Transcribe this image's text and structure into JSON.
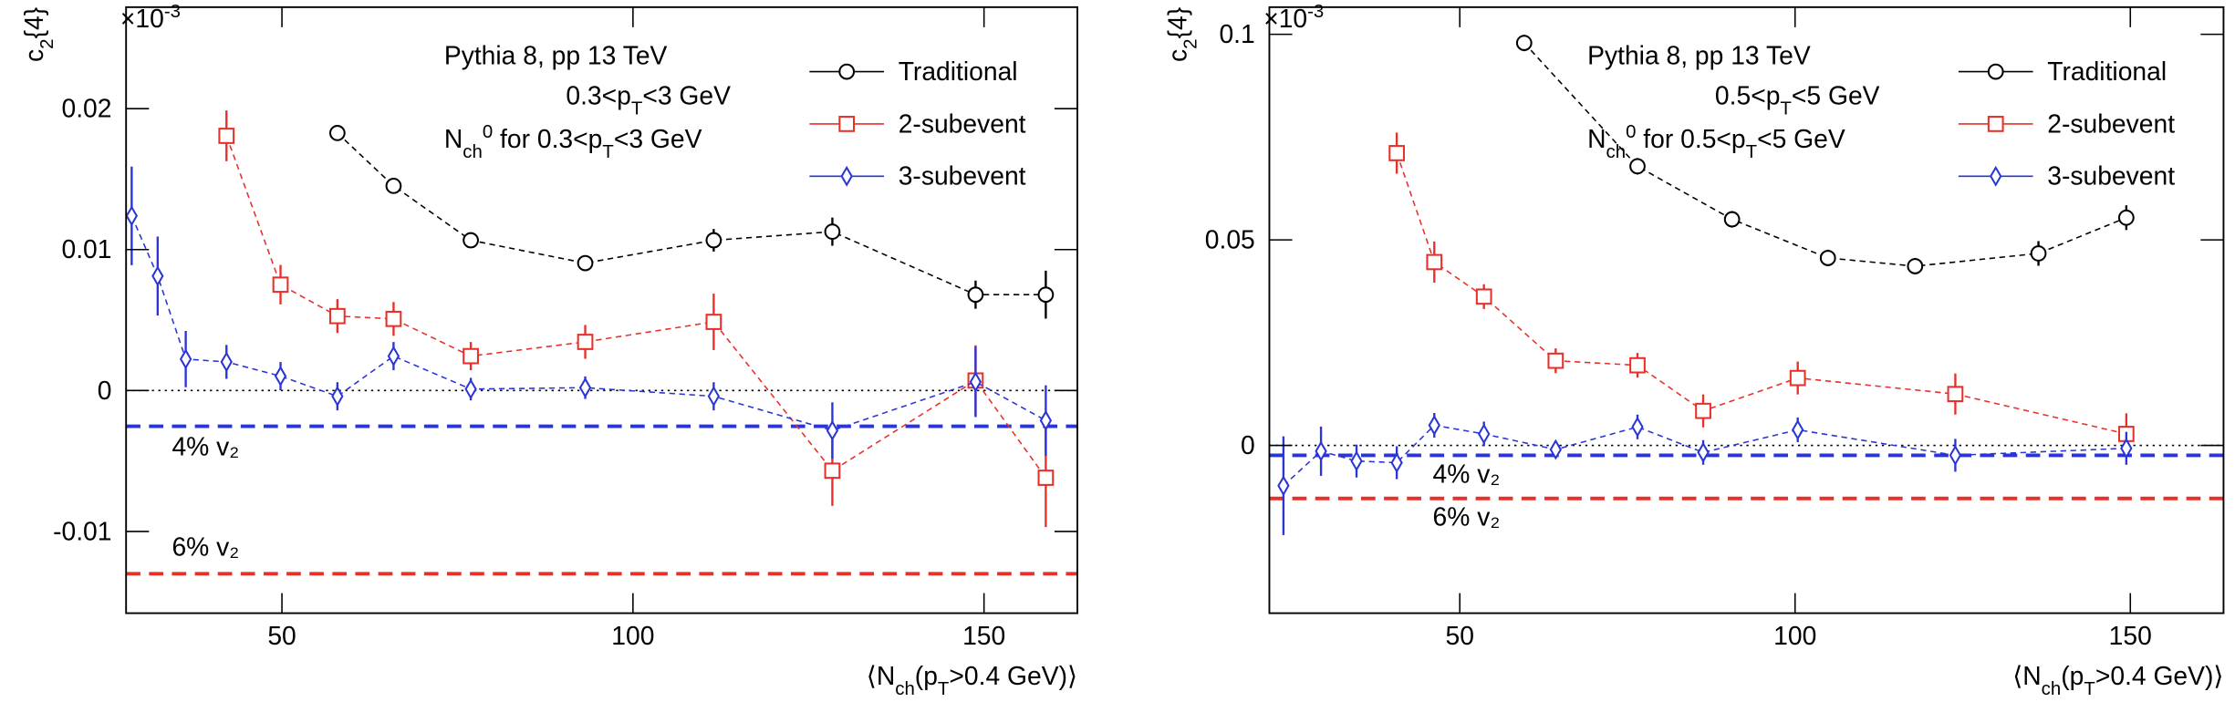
{
  "chart_data": [
    {
      "type": "line",
      "multiplier": [
        "×10",
        {
          "sup": "-3"
        }
      ],
      "ylabel": [
        "c",
        {
          "sub": "2"
        },
        "{4}"
      ],
      "xlabel": [
        "⟨N",
        {
          "sub": "ch"
        },
        "(p",
        {
          "sub": "T"
        },
        ">0.4 GeV)⟩"
      ],
      "annotations": [
        [
          "Pythia 8, pp 13 TeV"
        ],
        [
          "0.3<p",
          {
            "sub": "T"
          },
          "<3 GeV"
        ],
        [
          "N",
          {
            "sub": "ch"
          },
          {
            "sup": "0"
          },
          " for 0.3<p",
          {
            "sub": "T"
          },
          "<3 GeV"
        ]
      ],
      "xlim": [
        27.8,
        163.3
      ],
      "ylim": [
        -0.0158,
        0.0272
      ],
      "xticks": [
        50,
        100,
        150
      ],
      "yticks": [
        0.02,
        0.01,
        0,
        -0.01
      ],
      "series": [
        {
          "name": "Traditional",
          "color": "#000000",
          "marker": "circle",
          "x": [
            57.9,
            65.9,
            76.9,
            93.2,
            111.5,
            128.4,
            148.8,
            158.8
          ],
          "values": [
            0.01827,
            0.01452,
            0.01066,
            0.00904,
            0.01066,
            0.01127,
            0.0068,
            0.0068
          ],
          "errors": [
            0.0005,
            0.0005,
            0.0005,
            0.0005,
            0.0008,
            0.001,
            0.001,
            0.0017
          ]
        },
        {
          "name": "2-subevent",
          "color": "#e8302a",
          "marker": "square",
          "x": [
            42.1,
            49.8,
            57.9,
            65.9,
            76.9,
            93.2,
            111.5,
            128.4,
            148.8,
            158.8
          ],
          "values": [
            0.01807,
            0.00751,
            0.00528,
            0.00508,
            0.00244,
            0.00345,
            0.00487,
            -0.00569,
            0.00071,
            -0.00619
          ],
          "errors": [
            0.0018,
            0.0014,
            0.0012,
            0.0012,
            0.001,
            0.0012,
            0.002,
            0.0025,
            0.0025,
            0.0035
          ]
        },
        {
          "name": "3-subevent",
          "color": "#2a35d6",
          "marker": "diamond",
          "x": [
            28.6,
            32.3,
            36.3,
            42.1,
            49.8,
            57.9,
            65.9,
            76.9,
            93.2,
            111.5,
            128.4,
            148.8,
            158.8
          ],
          "values": [
            0.01239,
            0.00812,
            0.00223,
            0.00203,
            0.00102,
            -0.00041,
            0.00244,
            0.0001,
            0.0002,
            -0.00041,
            -0.00284,
            0.00061,
            -0.00213
          ],
          "errors": [
            0.0035,
            0.0028,
            0.002,
            0.0012,
            0.001,
            0.001,
            0.001,
            0.0008,
            0.0008,
            0.001,
            0.002,
            0.0025,
            0.0025
          ]
        }
      ],
      "hlines": [
        {
          "value": -0.00254,
          "color": "#2a35d6",
          "label": "4% v₂"
        },
        {
          "value": -0.013,
          "color": "#e8302a",
          "label": "6% v₂"
        }
      ]
    },
    {
      "type": "line",
      "multiplier": [
        "×10",
        {
          "sup": "-3"
        }
      ],
      "ylabel": [
        "c",
        {
          "sub": "2"
        },
        "{4}"
      ],
      "xlabel": [
        "⟨N",
        {
          "sub": "ch"
        },
        "(p",
        {
          "sub": "T"
        },
        ">0.4 GeV)⟩"
      ],
      "annotations": [
        [
          "Pythia 8, pp 13 TeV"
        ],
        [
          "0.5<p",
          {
            "sub": "T"
          },
          "<5 GeV"
        ],
        [
          "N",
          {
            "sub": "ch"
          },
          {
            "sup": "0"
          },
          " for 0.5<p",
          {
            "sub": "T"
          },
          "<5 GeV"
        ]
      ],
      "xlim": [
        21.6,
        163.9
      ],
      "ylim": [
        -0.0408,
        0.1066
      ],
      "xticks": [
        50,
        100,
        150
      ],
      "yticks": [
        0.1,
        0.05,
        0
      ],
      "series": [
        {
          "name": "Traditional",
          "color": "#000000",
          "marker": "circle",
          "x": [
            59.6,
            76.5,
            90.6,
            104.9,
            117.9,
            136.3,
            149.4
          ],
          "values": [
            0.0979,
            0.0679,
            0.055,
            0.0456,
            0.0436,
            0.0467,
            0.0554
          ],
          "errors": [
            0.002,
            0.002,
            0.002,
            0.002,
            0.002,
            0.003,
            0.003
          ]
        },
        {
          "name": "2-subevent",
          "color": "#e8302a",
          "marker": "square",
          "x": [
            40.6,
            46.2,
            53.6,
            64.3,
            76.5,
            86.3,
            100.4,
            123.9,
            149.4
          ],
          "values": [
            0.0711,
            0.0446,
            0.0362,
            0.0206,
            0.0195,
            0.0084,
            0.0164,
            0.0125,
            0.0028
          ],
          "errors": [
            0.005,
            0.005,
            0.003,
            0.003,
            0.003,
            0.004,
            0.004,
            0.005,
            0.005
          ]
        },
        {
          "name": "3-subevent",
          "color": "#2a35d6",
          "marker": "diamond",
          "x": [
            23.7,
            29.3,
            34.6,
            40.6,
            46.2,
            53.6,
            64.3,
            76.5,
            86.3,
            100.4,
            123.9,
            149.4
          ],
          "values": [
            -0.0098,
            -0.0014,
            -0.0038,
            -0.0042,
            0.0049,
            0.0028,
            -0.001,
            0.0045,
            -0.0017,
            0.0038,
            -0.0024,
            -0.0007
          ],
          "errors": [
            0.012,
            0.006,
            0.004,
            0.004,
            0.003,
            0.003,
            0.002,
            0.003,
            0.003,
            0.003,
            0.004,
            0.004
          ]
        }
      ],
      "hlines": [
        {
          "value": -0.0024,
          "color": "#2a35d6",
          "label": "4% v₂"
        },
        {
          "value": -0.0129,
          "color": "#e8302a",
          "label": "6% v₂"
        }
      ]
    }
  ]
}
